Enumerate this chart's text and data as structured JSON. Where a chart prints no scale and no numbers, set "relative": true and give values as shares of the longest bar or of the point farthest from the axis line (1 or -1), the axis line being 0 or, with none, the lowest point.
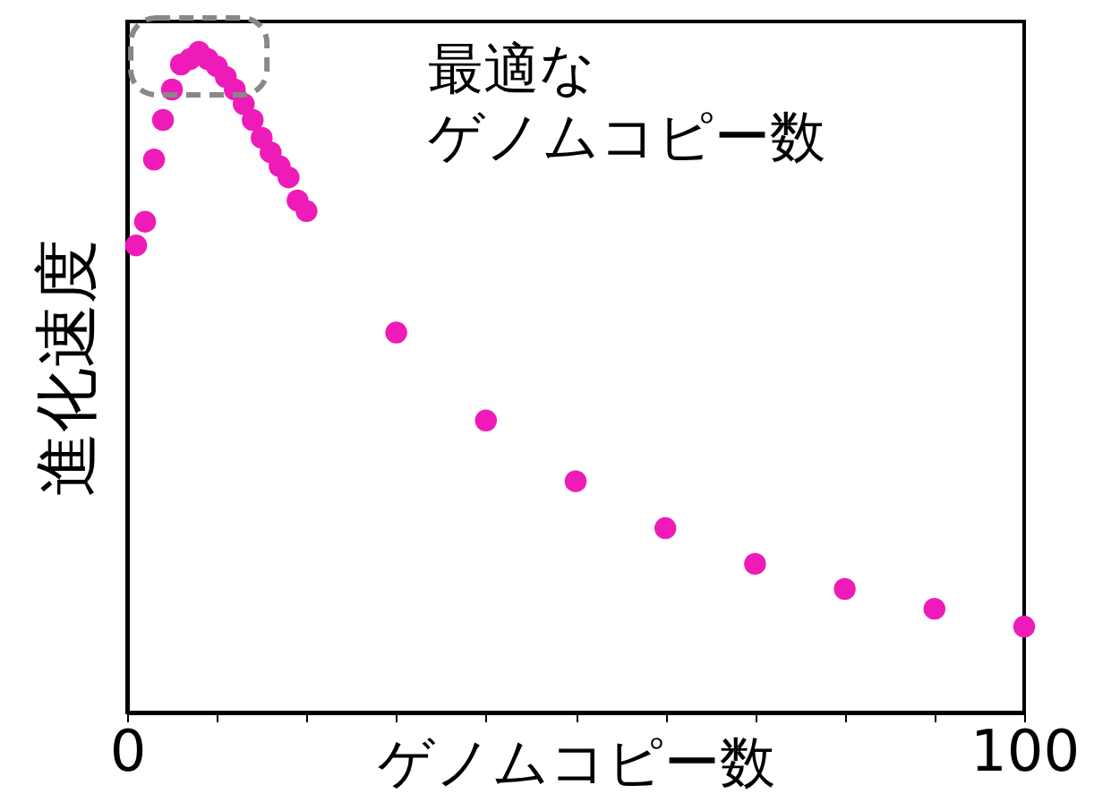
{
  "chart_data": {
    "type": "scatter",
    "relative": true,
    "marker": "circle",
    "xlabel": "ゲノムコピー数",
    "ylabel": "進化速度",
    "xlim": [
      0,
      100
    ],
    "xticks": [
      0,
      {
        "value": 10,
        "label": null
      },
      {
        "value": 20,
        "label": null
      },
      {
        "value": 30,
        "label": null
      },
      {
        "value": 40,
        "label": null
      },
      {
        "value": 50,
        "label": null
      },
      {
        "value": 60,
        "label": null
      },
      {
        "value": 70,
        "label": null
      },
      {
        "value": 80,
        "label": null
      },
      {
        "value": 90,
        "label": null
      },
      100
    ],
    "x": [
      1,
      2,
      3,
      4,
      5,
      6,
      7,
      8,
      9,
      10,
      11,
      12,
      13,
      14,
      15,
      16,
      17,
      18,
      19,
      20,
      30,
      40,
      50,
      60,
      70,
      80,
      90,
      100
    ],
    "series": [
      {
        "color": "#ee1bb9",
        "values": [
          0.707,
          0.743,
          0.837,
          0.897,
          0.943,
          0.981,
          0.989,
          1,
          0.989,
          0.978,
          0.962,
          0.943,
          0.921,
          0.897,
          0.87,
          0.848,
          0.827,
          0.81,
          0.775,
          0.759,
          0.575,
          0.442,
          0.35,
          0.279,
          0.225,
          0.187,
          0.157,
          0.13
        ]
      }
    ],
    "annotations": [
      "最適なゲノムコピー数"
    ]
  }
}
